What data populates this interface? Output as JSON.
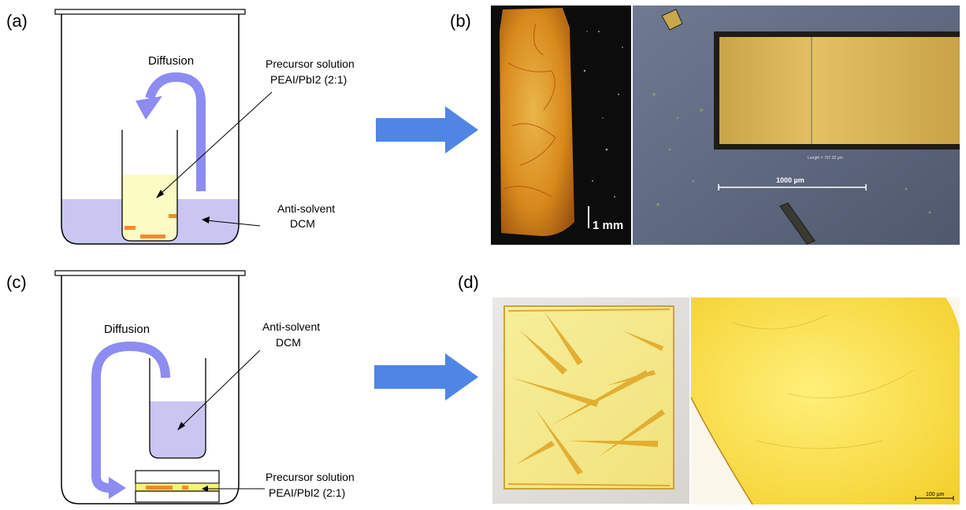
{
  "panels": {
    "a": {
      "label": "(a)",
      "diffusion": "Diffusion",
      "precursor_line1": "Precursor solution",
      "precursor_line2": "PEAI/PbI2 (2:1)",
      "antisolvent_line1": "Anti-solvent",
      "antisolvent_line2": "DCM"
    },
    "b": {
      "label": "(b)",
      "scale_left": "1 mm",
      "scale_right": "1000 µm",
      "length_readout": "Length = 797.32 µm"
    },
    "c": {
      "label": "(c)",
      "diffusion": "Diffusion",
      "antisolvent_line1": "Anti-solvent",
      "antisolvent_line2": "DCM",
      "precursor_line1": "Precursor solution",
      "precursor_line2": "PEAI/PbI2 (2:1)"
    },
    "d": {
      "label": "(d)",
      "scale_right": "100 µm"
    }
  },
  "colors": {
    "antisolvent": "#c9c7f2",
    "precursor": "#fbfbc4",
    "crystal": "#f08a2c",
    "diffusion_arrow": "#8c8cf2",
    "transition_arrow": "#4f86e6",
    "yellow_film": "#fff48a"
  }
}
